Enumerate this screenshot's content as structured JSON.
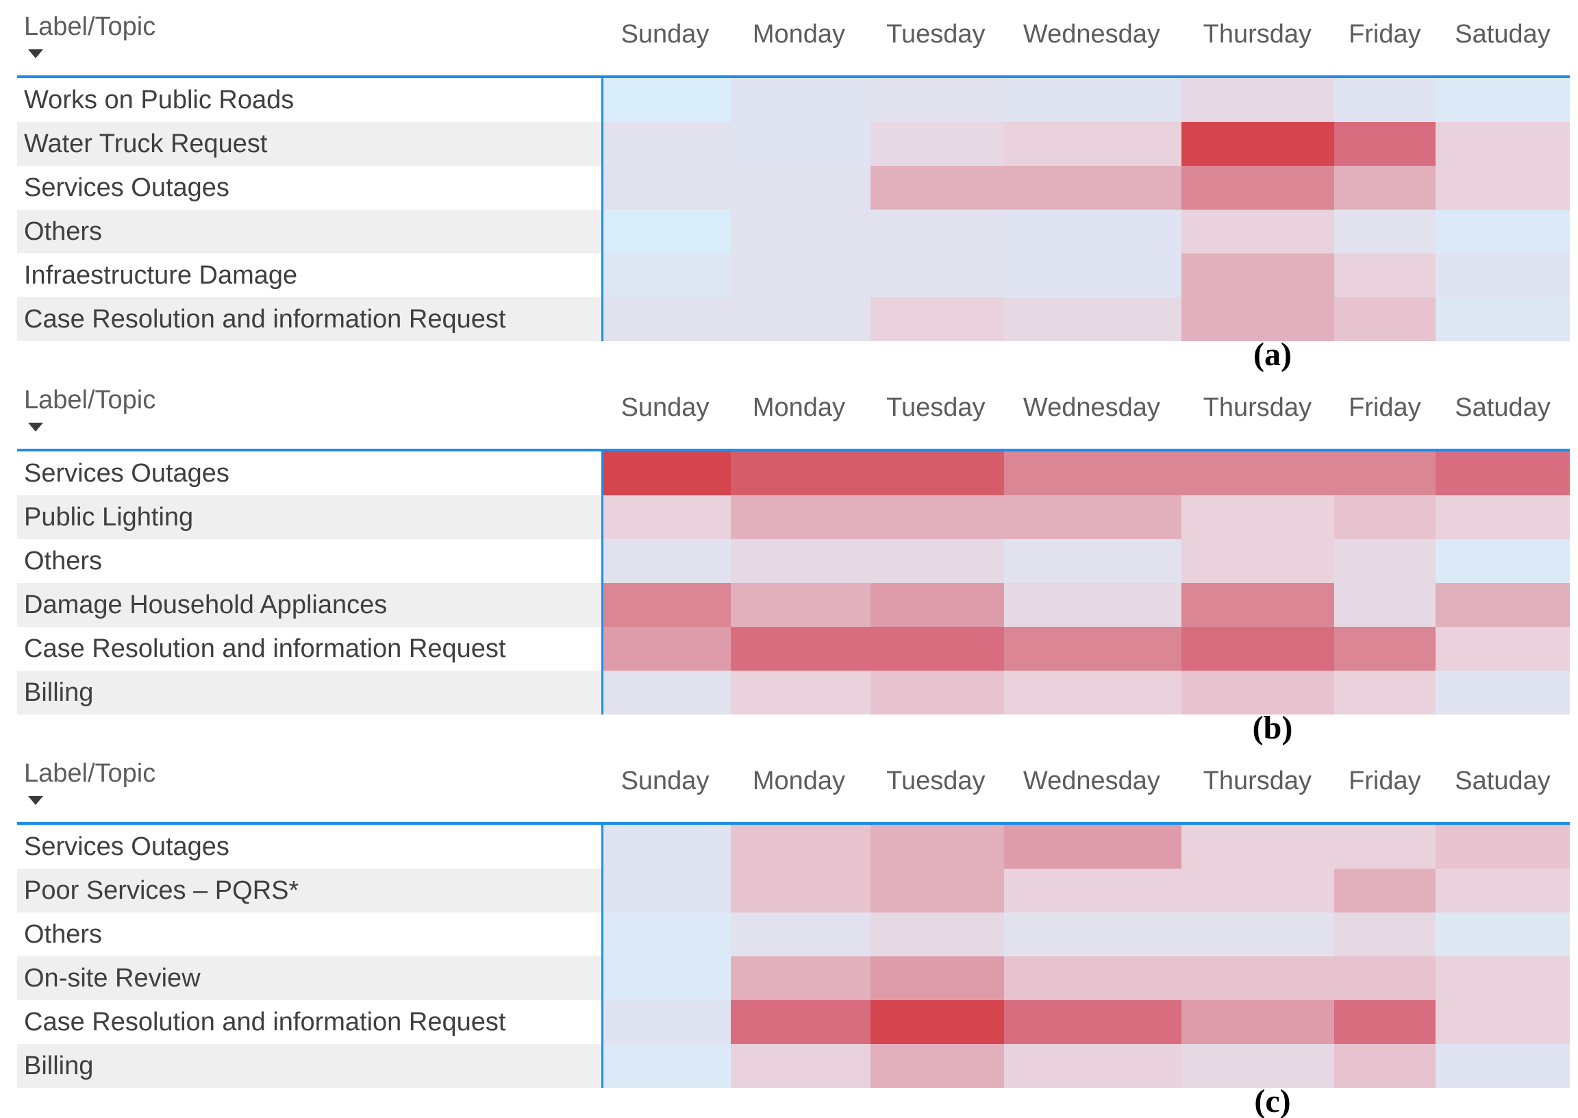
{
  "figure": {
    "label_header": "Label/Topic",
    "sort_icon": "triangle-down-icon"
  },
  "colors": {
    "divider_blue": "#1f8ceb",
    "header_text": "#5d5d5d",
    "row_label_text": "#3f3f3f",
    "row_alt_bg": "#efefef",
    "row_bg": "#ffffff",
    "caption_text": "#000000",
    "sort_icon": "#3a3a3a",
    "palette": {
      "b3": "#daedfb",
      "b2": "#dceaf7",
      "b1": "#dee8f4",
      "n2": "#dfe3f2",
      "n1": "#e1e2ee",
      "p1": "#e6d9e4",
      "p2": "#e9d2dc",
      "p3": "#e6c3cf",
      "p4": "#e2b0bd",
      "p5": "#de9caa",
      "p6": "#da8694",
      "p7": "#d76d7e",
      "p8": "#d65c69",
      "p9": "#d4454e"
    }
  },
  "chart_data": [
    {
      "type": "heatmap",
      "caption": "(a)",
      "x": [
        "Sunday",
        "Monday",
        "Tuesday",
        "Wednesday",
        "Thursday",
        "Friday",
        "Satuday"
      ],
      "y": [
        "Works on Public Roads",
        "Water Truck Request",
        "Services Outages",
        "Others",
        "Infraestructure Damage",
        "Case Resolution and information Request"
      ],
      "legend": "none",
      "color_scale_low_to_high": [
        "b3",
        "b2",
        "b1",
        "n2",
        "n1",
        "p1",
        "p2",
        "p3",
        "p4",
        "p5",
        "p6",
        "p7",
        "p8",
        "p9"
      ],
      "cells": [
        [
          "b3",
          "n2",
          "n1",
          "n2",
          "p1",
          "n2",
          "b2"
        ],
        [
          "n1",
          "n2",
          "p1",
          "p2",
          "p9",
          "p7",
          "p2"
        ],
        [
          "n1",
          "n1",
          "p4",
          "p4",
          "p6",
          "p4",
          "p2"
        ],
        [
          "b3",
          "n1",
          "n1",
          "n2",
          "p2",
          "n1",
          "b2"
        ],
        [
          "b1",
          "n1",
          "n1",
          "n2",
          "p4",
          "p2",
          "n2"
        ],
        [
          "n1",
          "n1",
          "p2",
          "p1",
          "p4",
          "p3",
          "b1"
        ]
      ],
      "intensity_estimate_0to13": [
        [
          0,
          3,
          4,
          3,
          5,
          3,
          1
        ],
        [
          4,
          3,
          5,
          6,
          13,
          11,
          6
        ],
        [
          4,
          4,
          8,
          8,
          10,
          8,
          6
        ],
        [
          0,
          4,
          4,
          3,
          6,
          4,
          1
        ],
        [
          2,
          4,
          4,
          3,
          8,
          6,
          3
        ],
        [
          4,
          4,
          6,
          5,
          8,
          7,
          2
        ]
      ]
    },
    {
      "type": "heatmap",
      "caption": "(b)",
      "x": [
        "Sunday",
        "Monday",
        "Tuesday",
        "Wednesday",
        "Thursday",
        "Friday",
        "Satuday"
      ],
      "y": [
        "Services Outages",
        "Public Lighting",
        "Others",
        "Damage Household Appliances",
        "Case Resolution and information Request",
        "Billing"
      ],
      "legend": "none",
      "color_scale_low_to_high": [
        "b3",
        "b2",
        "b1",
        "n2",
        "n1",
        "p1",
        "p2",
        "p3",
        "p4",
        "p5",
        "p6",
        "p7",
        "p8",
        "p9"
      ],
      "cells": [
        [
          "p9",
          "p8",
          "p8",
          "p6",
          "p6",
          "p6",
          "p7"
        ],
        [
          "p2",
          "p4",
          "p4",
          "p4",
          "p2",
          "p3",
          "p2"
        ],
        [
          "n1",
          "p1",
          "p1",
          "n1",
          "p2",
          "p1",
          "b2"
        ],
        [
          "p6",
          "p4",
          "p5",
          "p1",
          "p6",
          "p1",
          "p4"
        ],
        [
          "p5",
          "p7",
          "p7",
          "p6",
          "p7",
          "p6",
          "p2"
        ],
        [
          "n1",
          "p2",
          "p3",
          "p2",
          "p3",
          "p2",
          "n2"
        ]
      ],
      "intensity_estimate_0to13": [
        [
          13,
          12,
          12,
          10,
          10,
          10,
          11
        ],
        [
          6,
          8,
          8,
          8,
          6,
          7,
          6
        ],
        [
          4,
          5,
          5,
          4,
          6,
          5,
          1
        ],
        [
          10,
          8,
          9,
          5,
          10,
          5,
          8
        ],
        [
          9,
          11,
          11,
          10,
          11,
          10,
          6
        ],
        [
          4,
          6,
          7,
          6,
          7,
          6,
          3
        ]
      ]
    },
    {
      "type": "heatmap",
      "caption": "(c)",
      "x": [
        "Sunday",
        "Monday",
        "Tuesday",
        "Wednesday",
        "Thursday",
        "Friday",
        "Satuday"
      ],
      "y": [
        "Services Outages",
        "Poor Services – PQRS*",
        "Others",
        "On-site Review",
        "Case Resolution and information Request",
        "Billing"
      ],
      "legend": "none",
      "color_scale_low_to_high": [
        "b3",
        "b2",
        "b1",
        "n2",
        "n1",
        "p1",
        "p2",
        "p3",
        "p4",
        "p5",
        "p6",
        "p7",
        "p8",
        "p9"
      ],
      "cells": [
        [
          "n2",
          "p3",
          "p4",
          "p5",
          "p2",
          "p2",
          "p3"
        ],
        [
          "n2",
          "p3",
          "p4",
          "p2",
          "p2",
          "p4",
          "p2"
        ],
        [
          "b2",
          "n1",
          "p1",
          "n1",
          "n1",
          "p1",
          "b1"
        ],
        [
          "b2",
          "p4",
          "p5",
          "p3",
          "p3",
          "p3",
          "p2"
        ],
        [
          "n2",
          "p7",
          "p9",
          "p7",
          "p5",
          "p7",
          "p2"
        ],
        [
          "b2",
          "p2",
          "p4",
          "p2",
          "p1",
          "p3",
          "n2"
        ]
      ],
      "intensity_estimate_0to13": [
        [
          3,
          7,
          8,
          9,
          6,
          6,
          7
        ],
        [
          3,
          7,
          8,
          6,
          6,
          8,
          6
        ],
        [
          1,
          4,
          5,
          4,
          4,
          5,
          2
        ],
        [
          1,
          8,
          9,
          7,
          7,
          7,
          6
        ],
        [
          3,
          11,
          13,
          11,
          9,
          11,
          6
        ],
        [
          1,
          6,
          8,
          6,
          5,
          7,
          3
        ]
      ]
    }
  ]
}
